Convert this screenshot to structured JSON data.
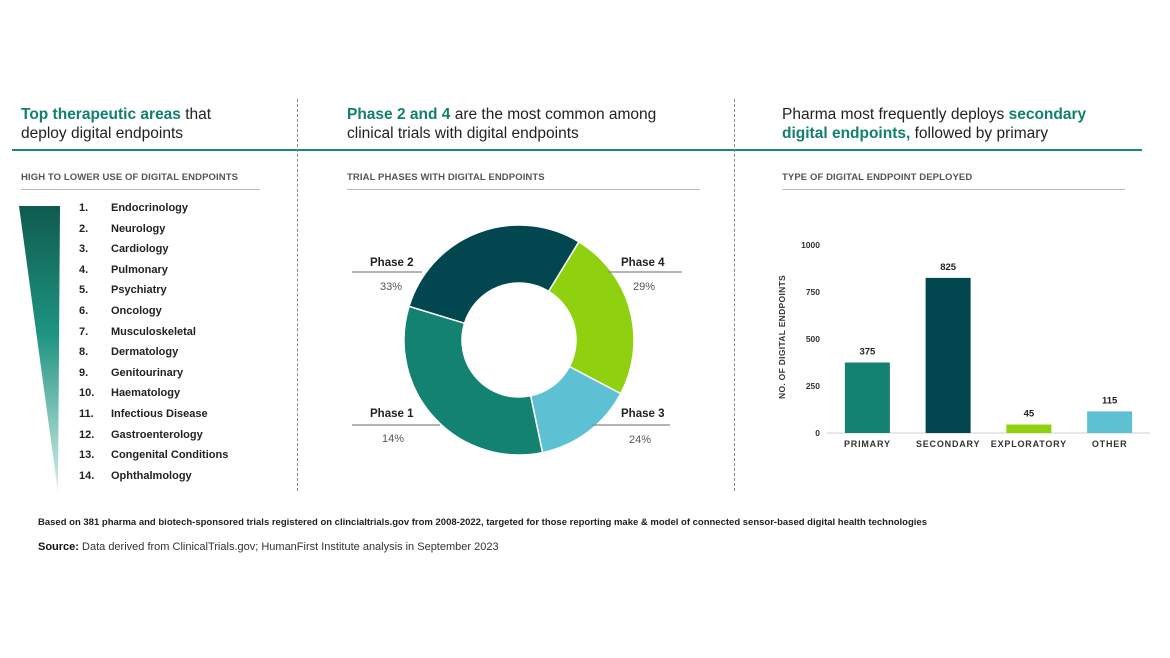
{
  "headlines": {
    "left_hl": "Top therapeutic areas",
    "left_rest_1": " that",
    "left_rest_2": "deploy digital endpoints",
    "mid_hl": "Phase 2 and 4",
    "mid_rest_1": " are the most common among",
    "mid_rest_2": "clinical trials with digital endpoints",
    "right_pre": "Pharma most frequently deploys ",
    "right_hl_1": "secondary",
    "right_hl_2": "digital endpoints,",
    "right_rest_2": " followed by primary"
  },
  "subheads": {
    "left": "HIGH TO LOWER USE OF DIGITAL ENDPOINTS",
    "mid": "TRIAL PHASES WITH DIGITAL ENDPOINTS",
    "right": "TYPE OF DIGITAL ENDPOINT DEPLOYED"
  },
  "therapeutic_areas": [
    {
      "num": "1.",
      "name": "Endocrinology"
    },
    {
      "num": "2.",
      "name": "Neurology"
    },
    {
      "num": "3.",
      "name": "Cardiology"
    },
    {
      "num": "4.",
      "name": "Pulmonary"
    },
    {
      "num": "5.",
      "name": "Psychiatry"
    },
    {
      "num": "6.",
      "name": "Oncology"
    },
    {
      "num": "7.",
      "name": "Musculoskeletal"
    },
    {
      "num": "8.",
      "name": "Dermatology"
    },
    {
      "num": "9.",
      "name": "Genitourinary"
    },
    {
      "num": "10.",
      "name": "Haematology"
    },
    {
      "num": "11.",
      "name": "Infectious Disease"
    },
    {
      "num": "12.",
      "name": "Gastroenterology"
    },
    {
      "num": "13.",
      "name": "Congenital Conditions"
    },
    {
      "num": "14.",
      "name": "Ophthalmology"
    }
  ],
  "chart_data": [
    {
      "type": "pie",
      "title": "TRIAL PHASES WITH DIGITAL ENDPOINTS",
      "slices": [
        {
          "label": "Phase 4",
          "value": 29,
          "pct": "29%",
          "color": "#02474f"
        },
        {
          "label": "Phase 3",
          "value": 24,
          "pct": "24%",
          "color": "#8fd10f"
        },
        {
          "label": "Phase 1",
          "value": 14,
          "pct": "14%",
          "color": "#5ec1d3"
        },
        {
          "label": "Phase 2",
          "value": 33,
          "pct": "33%",
          "color": "#148270"
        }
      ]
    },
    {
      "type": "bar",
      "title": "TYPE OF DIGITAL ENDPOINT DEPLOYED",
      "ylabel": "NO. OF DIGITAL ENDPOINTS",
      "ylim": [
        0,
        1000
      ],
      "yticks": [
        "0",
        "250",
        "500",
        "750",
        "1000"
      ],
      "categories": [
        "PRIMARY",
        "SECONDARY",
        "EXPLORATORY",
        "OTHER"
      ],
      "values": [
        375,
        825,
        45,
        115
      ],
      "value_labels": [
        "375",
        "825",
        "45",
        "115"
      ],
      "colors": [
        "#148270",
        "#02474f",
        "#8fd10f",
        "#5ec1d3"
      ]
    }
  ],
  "footnote": "Based on 381 pharma and biotech-sponsored trials registered on clincialtrials.gov from 2008-2022, targeted for those reporting make & model of connected sensor-based digital health technologies",
  "source_label": "Source:",
  "source_text": " Data derived from ClinicalTrials.gov; HumanFirst Institute analysis in September 2023"
}
